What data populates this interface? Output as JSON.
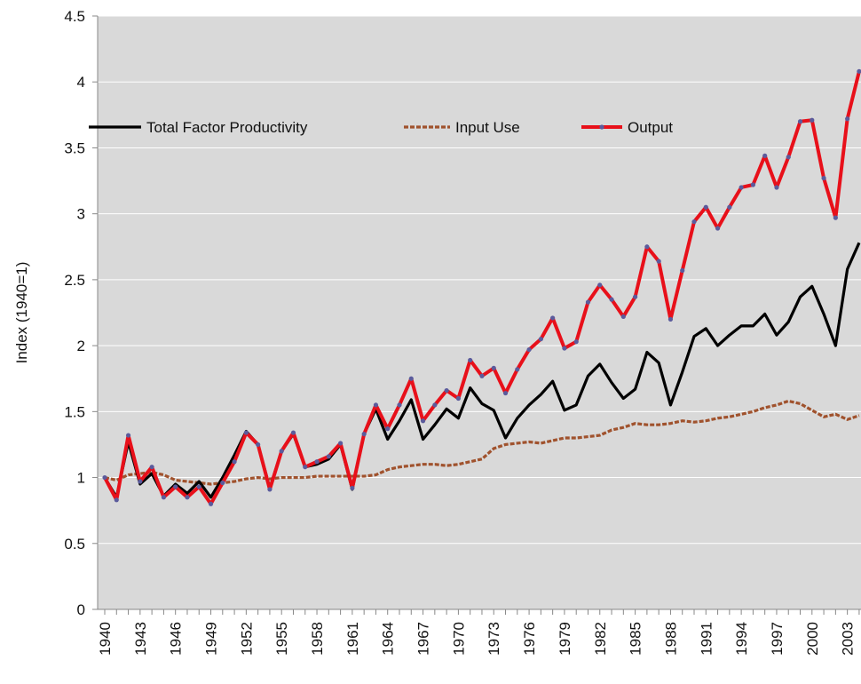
{
  "chart_data": {
    "type": "line",
    "y_label": "Index (1940=1)",
    "categories": [
      "1940",
      null,
      null,
      "1943",
      null,
      null,
      "1946",
      null,
      null,
      "1949",
      null,
      null,
      "1952",
      null,
      null,
      "1955",
      null,
      null,
      "1958",
      null,
      null,
      "1961",
      null,
      null,
      "1964",
      null,
      null,
      "1967",
      null,
      null,
      "1970",
      null,
      null,
      "1973",
      null,
      null,
      "1976",
      null,
      null,
      "1979",
      null,
      null,
      "1982",
      null,
      null,
      "1985",
      null,
      null,
      "1988",
      null,
      null,
      "1991",
      null,
      null,
      "1994",
      null,
      null,
      "1997",
      null,
      null,
      "2000",
      null,
      null,
      "2003",
      null
    ],
    "series": [
      {
        "name": "Total Factor Productivity",
        "color": "#000000",
        "line_style": "solid",
        "markers": false,
        "values": [
          1.0,
          0.85,
          1.27,
          0.95,
          1.03,
          0.86,
          0.95,
          0.88,
          0.97,
          0.85,
          1.0,
          1.17,
          1.35,
          1.25,
          0.92,
          1.2,
          1.33,
          1.08,
          1.1,
          1.14,
          1.25,
          0.91,
          1.33,
          1.52,
          1.29,
          1.43,
          1.59,
          1.29,
          1.4,
          1.52,
          1.45,
          1.68,
          1.56,
          1.51,
          1.3,
          1.45,
          1.55,
          1.63,
          1.73,
          1.51,
          1.55,
          1.77,
          1.86,
          1.72,
          1.6,
          1.67,
          1.95,
          1.87,
          1.55,
          1.8,
          2.07,
          2.13,
          2.0,
          2.08,
          2.15,
          2.15,
          2.24,
          2.08,
          2.18,
          2.37,
          2.45,
          2.24,
          2.0,
          2.58,
          2.78
        ]
      },
      {
        "name": "Input Use",
        "color": "#a0522d",
        "line_style": "dashed",
        "markers": false,
        "values": [
          1.0,
          0.98,
          1.02,
          1.03,
          1.04,
          1.02,
          0.98,
          0.97,
          0.96,
          0.95,
          0.96,
          0.97,
          0.99,
          1.0,
          0.99,
          1.0,
          1.0,
          1.0,
          1.01,
          1.01,
          1.01,
          1.01,
          1.01,
          1.02,
          1.06,
          1.08,
          1.09,
          1.1,
          1.1,
          1.09,
          1.1,
          1.12,
          1.14,
          1.22,
          1.25,
          1.26,
          1.27,
          1.26,
          1.28,
          1.3,
          1.3,
          1.31,
          1.32,
          1.36,
          1.38,
          1.41,
          1.4,
          1.4,
          1.41,
          1.43,
          1.42,
          1.43,
          1.45,
          1.46,
          1.48,
          1.5,
          1.53,
          1.55,
          1.58,
          1.56,
          1.51,
          1.46,
          1.48,
          1.44,
          1.47
        ]
      },
      {
        "name": "Output",
        "color": "#e8101a",
        "marker_color": "#5b5b9c",
        "line_style": "solid",
        "markers": true,
        "values": [
          1.0,
          0.83,
          1.32,
          0.97,
          1.08,
          0.85,
          0.93,
          0.85,
          0.93,
          0.8,
          0.96,
          1.12,
          1.34,
          1.25,
          0.91,
          1.2,
          1.34,
          1.08,
          1.12,
          1.16,
          1.26,
          0.92,
          1.33,
          1.55,
          1.37,
          1.55,
          1.75,
          1.43,
          1.55,
          1.66,
          1.6,
          1.89,
          1.77,
          1.83,
          1.64,
          1.82,
          1.97,
          2.05,
          2.21,
          1.98,
          2.03,
          2.33,
          2.46,
          2.35,
          2.22,
          2.37,
          2.75,
          2.64,
          2.2,
          2.57,
          2.94,
          3.05,
          2.89,
          3.05,
          3.2,
          3.22,
          3.44,
          3.2,
          3.43,
          3.7,
          3.71,
          3.27,
          2.97,
          3.72,
          4.08
        ]
      }
    ],
    "ylim": [
      0,
      4.5
    ],
    "yticks": [
      0,
      0.5,
      1,
      1.5,
      2,
      2.5,
      3,
      3.5,
      4,
      4.5
    ],
    "grid": true,
    "plot_background": "#d9d9d9",
    "legend": "top"
  }
}
